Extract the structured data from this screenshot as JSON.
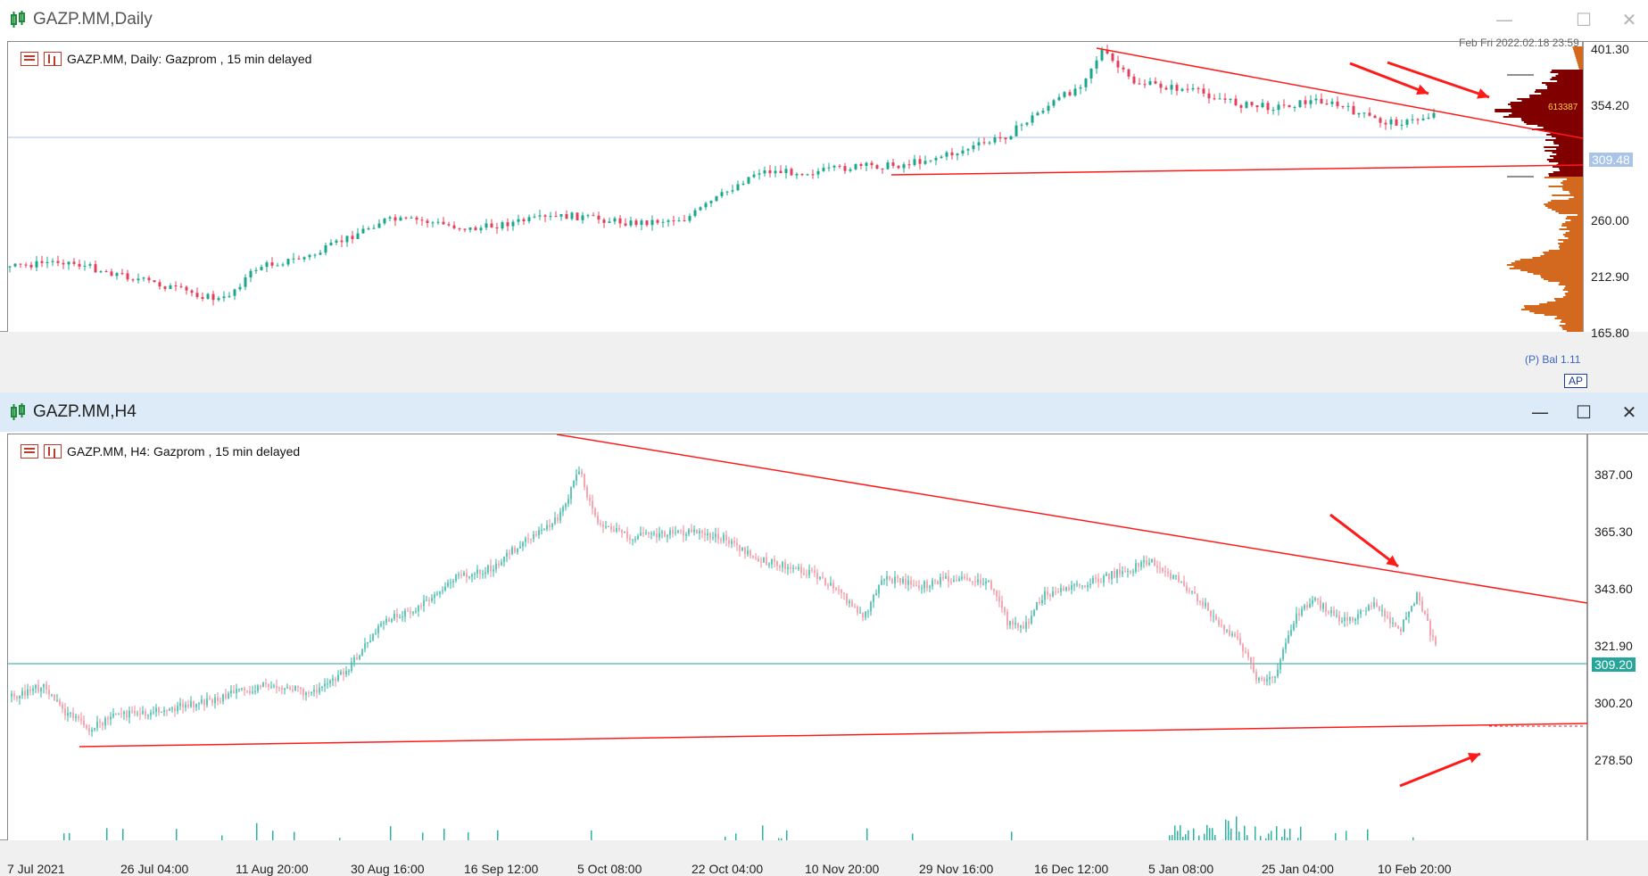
{
  "top": {
    "window_title": "GAZP.MM,Daily",
    "header": "GAZP.MM, Daily:  Gazprom , 15 min delayed",
    "datetime": "Feb Fri 2022.02.18 23:59",
    "y_ticks": [
      "401.30",
      "354.20",
      "260.00",
      "212.90",
      "165.80"
    ],
    "current_price": "309.48",
    "volume_profile_label": "613387",
    "indicator_label": "(P) Bal 1.11",
    "ap_button": "AP"
  },
  "bottom": {
    "window_title": "GAZP.MM,H4",
    "header": "GAZP.MM, H4:  Gazprom , 15 min delayed",
    "y_ticks": [
      "387.00",
      "365.30",
      "343.60",
      "321.90",
      "300.20",
      "278.50"
    ],
    "current_price": "309.20",
    "x_ticks": [
      "7 Jul 2021",
      "26 Jul 04:00",
      "11 Aug 20:00",
      "30 Aug 16:00",
      "16 Sep 12:00",
      "5 Oct 08:00",
      "22 Oct 04:00",
      "10 Nov 20:00",
      "29 Nov 16:00",
      "16 Dec 12:00",
      "5 Jan 08:00",
      "25 Jan 04:00",
      "10 Feb 20:00"
    ]
  },
  "window_buttons": {
    "minimize": "—",
    "maximize": "☐",
    "close": "✕"
  },
  "colors": {
    "bull_daily": "#1aa68f",
    "bear_daily": "#e0405a",
    "bull_h4": "#2bb5a0",
    "bear_h4": "#f08a95",
    "trendline": "#ff1a1a",
    "profile_upper": "#800000",
    "profile_lower": "#d2691e",
    "price_line_daily": "#a9c4e8",
    "price_line_h4": "#26a69a"
  }
}
